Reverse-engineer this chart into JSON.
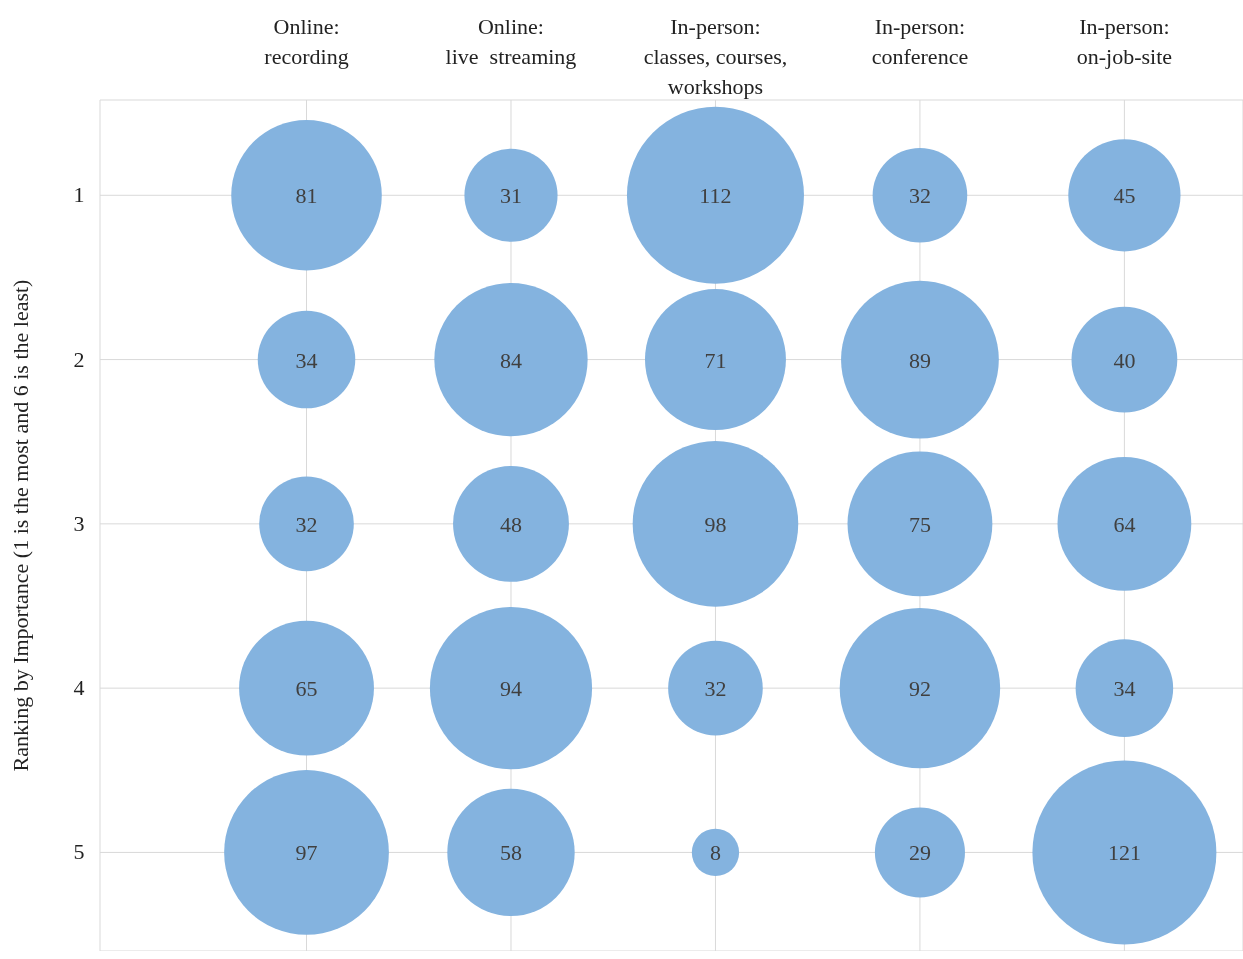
{
  "chart_data": {
    "type": "bubble",
    "ylabel": "Ranking by Importance (1 is the most and 6 is the least)",
    "categories": [
      "Online:\nrecording",
      "Online:\nlive  streaming",
      "In-person:\nclasses, courses,\nworkshops",
      "In-person:\nconference",
      "In-person:\non-job-site"
    ],
    "ylim": [
      5.6,
      0.42
    ],
    "yticks": [
      1,
      2,
      3,
      4,
      5
    ],
    "grid": true,
    "series": [
      {
        "color": "#84b3df",
        "values": [
          1,
          1,
          1,
          1,
          1
        ],
        "sizes": [
          81,
          31,
          112,
          32,
          45
        ],
        "value_labels": [
          "81",
          "31",
          "112",
          "32",
          "45"
        ]
      },
      {
        "color": "#84b3df",
        "values": [
          2,
          2,
          2,
          2,
          2
        ],
        "sizes": [
          34,
          84,
          71,
          89,
          40
        ],
        "value_labels": [
          "34",
          "84",
          "71",
          "89",
          "40"
        ]
      },
      {
        "color": "#84b3df",
        "values": [
          3,
          3,
          3,
          3,
          3
        ],
        "sizes": [
          32,
          48,
          98,
          75,
          64
        ],
        "value_labels": [
          "32",
          "48",
          "98",
          "75",
          "64"
        ]
      },
      {
        "color": "#84b3df",
        "values": [
          4,
          4,
          4,
          4,
          4
        ],
        "sizes": [
          65,
          94,
          32,
          92,
          34
        ],
        "value_labels": [
          "65",
          "94",
          "32",
          "92",
          "34"
        ]
      },
      {
        "color": "#84b3df",
        "values": [
          5,
          5,
          5,
          5,
          5
        ],
        "sizes": [
          97,
          58,
          8,
          29,
          121
        ],
        "value_labels": [
          "97",
          "58",
          "8",
          "29",
          "121"
        ]
      }
    ]
  }
}
